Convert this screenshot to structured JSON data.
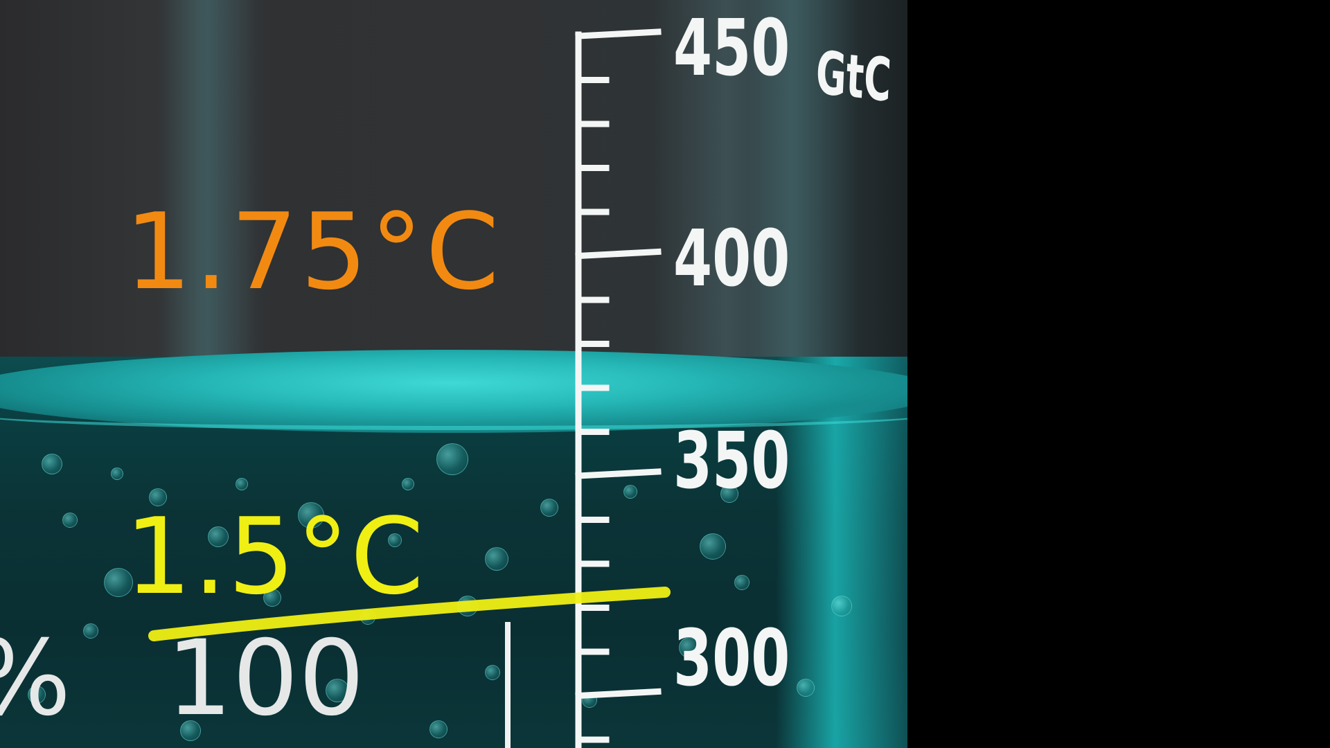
{
  "scale": {
    "unit": "GtC",
    "ticks": [
      "450",
      "400",
      "350",
      "300"
    ]
  },
  "labels": {
    "temp_high": "1.75°C",
    "temp_low": "1.5°C",
    "percent_sign": "%",
    "percent_value": "100"
  },
  "colors": {
    "temp_high": "#f28a12",
    "temp_low": "#f0ef14",
    "liquid": "#25b7b6",
    "scale_ink": "#f4f6f6"
  }
}
